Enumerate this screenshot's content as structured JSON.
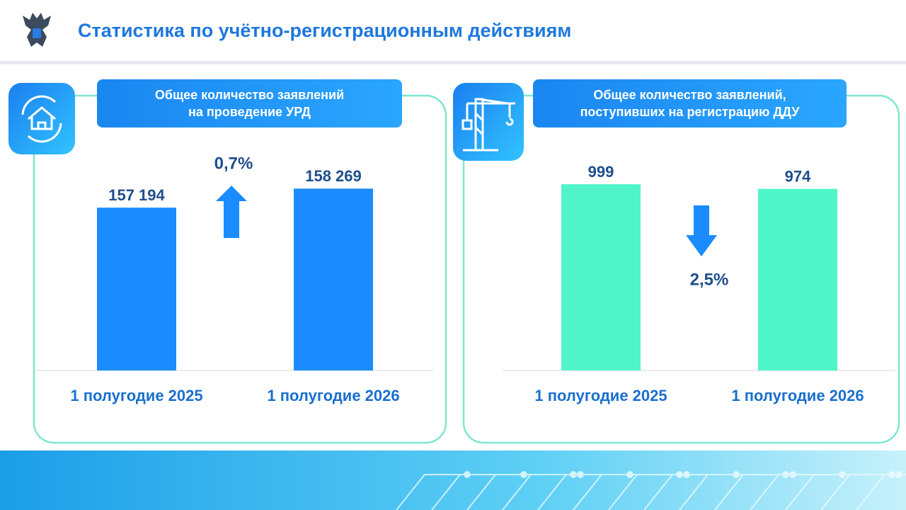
{
  "title": "Статистика по учётно-регистрационным действиям",
  "chart_data": [
    {
      "type": "bar",
      "title": "Общее количество заявлений\nна проведение УРД",
      "categories": [
        "1 полугодие 2025",
        "1 полугодие 2026"
      ],
      "values": [
        157194,
        158269
      ],
      "value_labels": [
        "157 194",
        "158 269"
      ],
      "color": "#1a8cff",
      "ylim": [
        148000,
        160000
      ],
      "annotation": "0,7%"
    },
    {
      "type": "bar",
      "title": "Общее количество заявлений,\nпоступивших на регистрацию ДДУ",
      "categories": [
        "1 полугодие 2025",
        "1 полугодие 2026"
      ],
      "values": [
        999,
        974
      ],
      "color": "#4ff5c9",
      "ylim": [
        0,
        1140
      ],
      "annotation": "2,5%"
    }
  ]
}
